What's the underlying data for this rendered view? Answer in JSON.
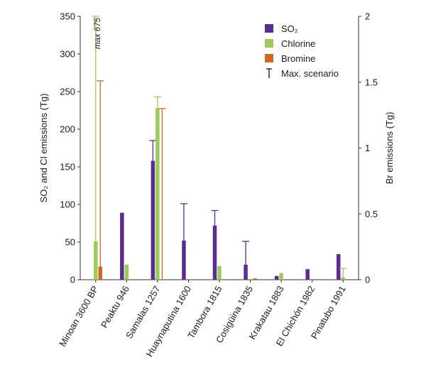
{
  "chart_data": {
    "type": "bar",
    "categories": [
      "Minoan 3600 BP",
      "Peaktu 946",
      "Samalas 1257",
      "Huaynaputina 1600",
      "Tambora 1815",
      "Cosigüina 1835",
      "Krakatau 1883",
      "El Chichón 1982",
      "Pinatubo 1991"
    ],
    "highlight_category": "Samalas 1257",
    "highlight_color": "#b5302e",
    "series": [
      {
        "name": "SO₂",
        "axis": "left",
        "color": "#5b2d91",
        "values": [
          0.5,
          89,
          158,
          52,
          72,
          20,
          5,
          14,
          34
        ],
        "max": [
          null,
          null,
          185,
          101,
          92,
          51,
          null,
          null,
          null
        ]
      },
      {
        "name": "Chlorine",
        "axis": "left",
        "color": "#9bcc5a",
        "values": [
          51,
          20,
          228,
          0,
          18,
          1,
          9,
          0,
          3
        ],
        "max": [
          350,
          null,
          243,
          null,
          null,
          null,
          null,
          null,
          15
        ]
      },
      {
        "name": "Bromine",
        "axis": "right",
        "color": "#d2691e",
        "values": [
          0.1,
          0,
          0,
          0,
          0,
          0.01,
          0,
          0,
          0
        ],
        "max": [
          1.51,
          null,
          1.3,
          null,
          null,
          null,
          null,
          null,
          null
        ]
      }
    ],
    "max_scenario_label": "Max. scenario",
    "annotation": "max 675",
    "ylabel_left": "SO₂ and Cl emissions (Tg)",
    "ylabel_right": "Br emissions (Tg)",
    "ylim_left": [
      0,
      350
    ],
    "ylim_right": [
      0,
      2
    ],
    "yticks_left": [
      "0",
      "50",
      "100",
      "150",
      "200",
      "250",
      "300",
      "350"
    ],
    "yticks_right": [
      "0",
      "0.5",
      "1",
      "1.5",
      "2"
    ],
    "legend_position": "top-right",
    "grid": false
  }
}
